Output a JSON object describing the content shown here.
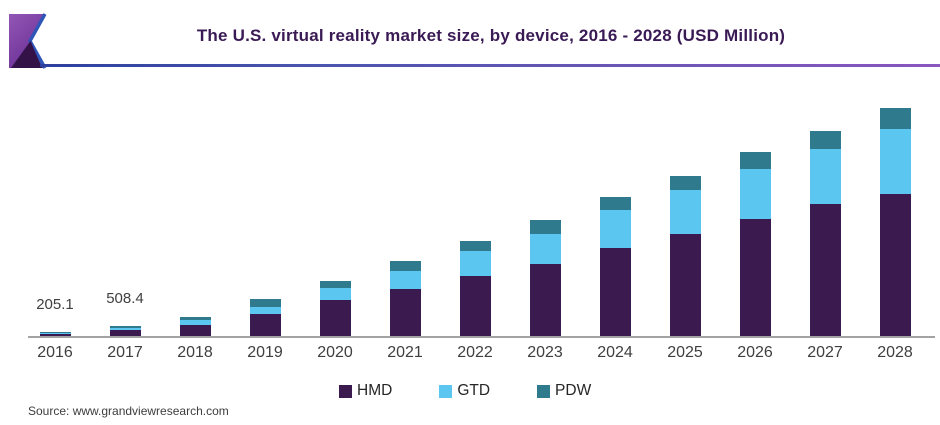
{
  "header": {
    "title": "The U.S. virtual reality market size, by device, 2016 - 2028 (USD Million)"
  },
  "source": {
    "label": "Source: www.grandviewresearch.com"
  },
  "colors": {
    "title": "#3A1A55",
    "hmd": "#3B1A4F",
    "gtd": "#5BC6F0",
    "pdw": "#2F7A8C",
    "axis": "#A3A3A3",
    "tick_text": "#3F3F3F",
    "rule_left": "#2C3F9E",
    "rule_right": "#8A56C0",
    "logo_purple_top": "#9257B5",
    "logo_purple_bottom": "#6A2F95",
    "logo_dark_triangle": "#331247",
    "logo_blue_edge": "#2E55B8"
  },
  "legend": {
    "items": [
      {
        "label": "HMD"
      },
      {
        "label": "GTD"
      },
      {
        "label": "PDW"
      }
    ]
  },
  "chart_data": {
    "type": "bar",
    "stacked": true,
    "title": "The U.S. virtual reality market size, by device, 2016 - 2028 (USD Million)",
    "unit": "USD Million",
    "categories": [
      "2016",
      "2017",
      "2018",
      "2019",
      "2020",
      "2021",
      "2022",
      "2023",
      "2024",
      "2025",
      "2026",
      "2027",
      "2028"
    ],
    "series": [
      {
        "name": "HMD",
        "color": "#3B1A4F",
        "values": [
          123.0,
          300.0,
          550,
          1120,
          1870,
          2450,
          3080,
          3750,
          4560,
          5260,
          6070,
          6830,
          7360
        ]
      },
      {
        "name": "GTD",
        "color": "#5BC6F0",
        "values": [
          55.6,
          138.4,
          260,
          400,
          590,
          920,
          1300,
          1510,
          1980,
          2290,
          2570,
          2870,
          3360
        ]
      },
      {
        "name": "PDW",
        "color": "#2F7A8C",
        "values": [
          26.5,
          70.0,
          190,
          380,
          390,
          530,
          520,
          740,
          660,
          750,
          860,
          900,
          1080
        ]
      }
    ],
    "totals": [
      205.1,
      508.4,
      1000,
      1900,
      2850,
      3900,
      4900,
      6000,
      7200,
      8300,
      9500,
      10600,
      11800
    ],
    "data_labels": {
      "2016": "205.1",
      "2017": "508.4"
    },
    "ylim": [
      0,
      12000
    ],
    "grid": false,
    "legend_position": "bottom",
    "note": "Only the 2016 (205.1) and 2017 (508.4) totals are printed on the chart; all other values are estimated from bar heights."
  }
}
